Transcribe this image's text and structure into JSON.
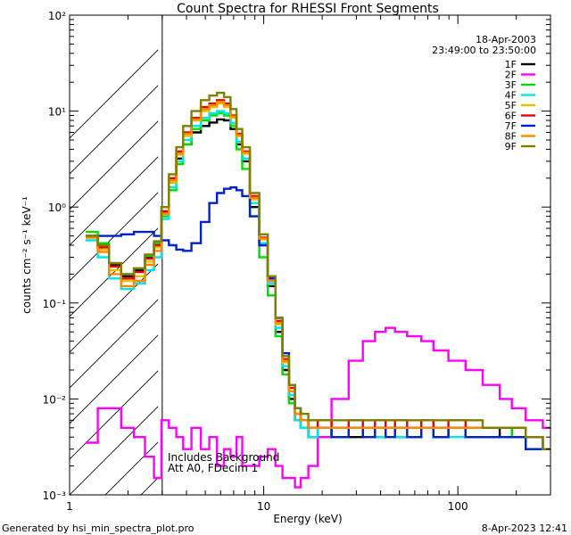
{
  "chart_data": {
    "type": "line",
    "title": "Count Spectra for RHESSI Front Segments",
    "xlabel": "Energy (keV)",
    "ylabel": "counts cm⁻² s⁻¹ keV⁻¹",
    "xscale": "log",
    "yscale": "log",
    "xlim": [
      1,
      300
    ],
    "ylim": [
      0.001,
      100
    ],
    "x_ticks": [
      "1",
      "10",
      "100"
    ],
    "y_ticks": [
      "10⁻³",
      "10⁻²",
      "10⁻¹",
      "10⁰",
      "10¹",
      "10²"
    ],
    "attenuator_cutoff_keV": 3.0,
    "date": "18-Apr-2003",
    "time_range": "23:49:00 to 23:50:00",
    "annotations": [
      "Includes Background",
      "Att A0, FDecim 1"
    ],
    "footer_left": "Generated by hsi_min_spectra_plot.pro",
    "footer_right": "8-Apr-2023 12:41",
    "legend_position": "top-right",
    "x": [
      1.3,
      1.5,
      1.7,
      2.0,
      2.3,
      2.6,
      2.85,
      3.1,
      3.4,
      3.7,
      4.0,
      4.5,
      5.0,
      5.5,
      6.0,
      6.5,
      7.0,
      7.5,
      8.0,
      9.0,
      10.0,
      11.0,
      12.0,
      13.0,
      14.0,
      15.0,
      16.0,
      18.0,
      20.0,
      25.0,
      30.0,
      35.0,
      40.0,
      45.0,
      50.0,
      60.0,
      70.0,
      80.0,
      100.0,
      120.0,
      150.0,
      180.0,
      200.0,
      250.0,
      300.0
    ],
    "series": [
      {
        "name": "1F",
        "color": "#000000",
        "values": [
          0.5,
          0.4,
          0.25,
          0.19,
          0.22,
          0.3,
          0.4,
          0.9,
          1.8,
          3.2,
          4.5,
          6.0,
          7.0,
          7.6,
          8.2,
          8.0,
          6.5,
          4.5,
          3.0,
          1.0,
          0.4,
          0.15,
          0.05,
          0.02,
          0.01,
          0.006,
          0.005,
          0.004,
          0.005,
          0.004,
          0.004,
          0.005,
          0.004,
          0.005,
          0.004,
          0.004,
          0.005,
          0.004,
          0.005,
          0.004,
          0.004,
          0.005,
          0.004,
          0.003,
          0.003
        ]
      },
      {
        "name": "2F",
        "color": "#ff00ff",
        "values": [
          0.0035,
          0.008,
          0.008,
          0.005,
          0.004,
          0.0025,
          0.0015,
          0.006,
          0.005,
          0.004,
          0.003,
          0.005,
          0.003,
          0.004,
          0.002,
          0.003,
          0.0025,
          0.004,
          0.002,
          0.002,
          0.0025,
          0.003,
          0.002,
          0.0015,
          0.0015,
          0.0012,
          0.0015,
          0.002,
          0.004,
          0.01,
          0.025,
          0.04,
          0.05,
          0.055,
          0.05,
          0.045,
          0.04,
          0.032,
          0.025,
          0.02,
          0.014,
          0.01,
          0.008,
          0.006,
          0.005
        ]
      },
      {
        "name": "3F",
        "color": "#00dd00",
        "values": [
          0.55,
          0.42,
          0.26,
          0.2,
          0.23,
          0.31,
          0.42,
          0.8,
          1.5,
          2.8,
          4.5,
          6.5,
          8.0,
          9.0,
          9.5,
          9.0,
          7.0,
          4.0,
          2.5,
          0.8,
          0.3,
          0.12,
          0.045,
          0.018,
          0.009,
          0.006,
          0.005,
          0.005,
          0.005,
          0.004,
          0.005,
          0.005,
          0.005,
          0.005,
          0.005,
          0.005,
          0.005,
          0.005,
          0.005,
          0.005,
          0.005,
          0.005,
          0.004,
          0.004,
          0.003
        ]
      },
      {
        "name": "4F",
        "color": "#00e6e6",
        "values": [
          0.45,
          0.3,
          0.18,
          0.14,
          0.16,
          0.22,
          0.3,
          0.75,
          1.6,
          3.0,
          5.0,
          7.0,
          8.5,
          9.5,
          10.0,
          9.5,
          7.5,
          4.8,
          3.2,
          1.1,
          0.42,
          0.16,
          0.055,
          0.022,
          0.011,
          0.006,
          0.005,
          0.004,
          0.005,
          0.004,
          0.005,
          0.005,
          0.004,
          0.005,
          0.004,
          0.004,
          0.005,
          0.004,
          0.004,
          0.004,
          0.004,
          0.004,
          0.004,
          0.003,
          0.003
        ]
      },
      {
        "name": "5F",
        "color": "#e8c000",
        "values": [
          0.5,
          0.36,
          0.22,
          0.17,
          0.19,
          0.27,
          0.38,
          0.85,
          1.8,
          3.5,
          5.5,
          8.0,
          10.0,
          11.0,
          12.0,
          11.0,
          8.5,
          5.5,
          3.6,
          1.2,
          0.46,
          0.17,
          0.06,
          0.024,
          0.012,
          0.007,
          0.006,
          0.005,
          0.006,
          0.005,
          0.005,
          0.006,
          0.005,
          0.006,
          0.005,
          0.005,
          0.006,
          0.005,
          0.005,
          0.005,
          0.005,
          0.005,
          0.005,
          0.004,
          0.003
        ]
      },
      {
        "name": "6F",
        "color": "#ee0000",
        "values": [
          0.5,
          0.38,
          0.24,
          0.18,
          0.21,
          0.29,
          0.4,
          0.9,
          2.0,
          3.8,
          6.0,
          8.5,
          11.0,
          12.0,
          13.0,
          12.0,
          9.0,
          5.8,
          3.8,
          1.3,
          0.48,
          0.18,
          0.065,
          0.026,
          0.013,
          0.007,
          0.006,
          0.005,
          0.006,
          0.005,
          0.006,
          0.005,
          0.006,
          0.005,
          0.006,
          0.005,
          0.006,
          0.005,
          0.006,
          0.005,
          0.005,
          0.005,
          0.005,
          0.004,
          0.003
        ]
      },
      {
        "name": "7F",
        "color": "#0022cc",
        "values": [
          0.5,
          0.5,
          0.5,
          0.52,
          0.55,
          0.55,
          0.5,
          0.45,
          0.4,
          0.36,
          0.35,
          0.42,
          0.7,
          1.1,
          1.4,
          1.55,
          1.6,
          1.5,
          1.3,
          0.8,
          0.4,
          0.18,
          0.07,
          0.03,
          0.014,
          0.008,
          0.006,
          0.005,
          0.005,
          0.004,
          0.005,
          0.004,
          0.005,
          0.004,
          0.005,
          0.004,
          0.005,
          0.004,
          0.005,
          0.004,
          0.004,
          0.004,
          0.004,
          0.003,
          0.003
        ]
      },
      {
        "name": "8F",
        "color": "#ff8800",
        "values": [
          0.48,
          0.34,
          0.2,
          0.15,
          0.17,
          0.25,
          0.35,
          0.85,
          1.9,
          3.6,
          5.8,
          8.2,
          10.5,
          11.5,
          12.5,
          11.5,
          8.8,
          5.6,
          3.7,
          1.25,
          0.47,
          0.17,
          0.062,
          0.025,
          0.012,
          0.007,
          0.006,
          0.005,
          0.005,
          0.005,
          0.005,
          0.005,
          0.005,
          0.005,
          0.005,
          0.005,
          0.005,
          0.005,
          0.005,
          0.005,
          0.005,
          0.005,
          0.005,
          0.004,
          0.003
        ]
      },
      {
        "name": "9F",
        "color": "#7f7f00",
        "values": [
          0.5,
          0.4,
          0.26,
          0.2,
          0.23,
          0.32,
          0.44,
          1.0,
          2.2,
          4.2,
          7.0,
          10.0,
          13.0,
          14.5,
          15.5,
          14.0,
          10.5,
          6.5,
          4.2,
          1.4,
          0.52,
          0.19,
          0.07,
          0.028,
          0.014,
          0.008,
          0.007,
          0.006,
          0.006,
          0.006,
          0.006,
          0.006,
          0.006,
          0.006,
          0.006,
          0.006,
          0.006,
          0.006,
          0.006,
          0.006,
          0.005,
          0.005,
          0.005,
          0.004,
          0.003
        ]
      }
    ]
  }
}
